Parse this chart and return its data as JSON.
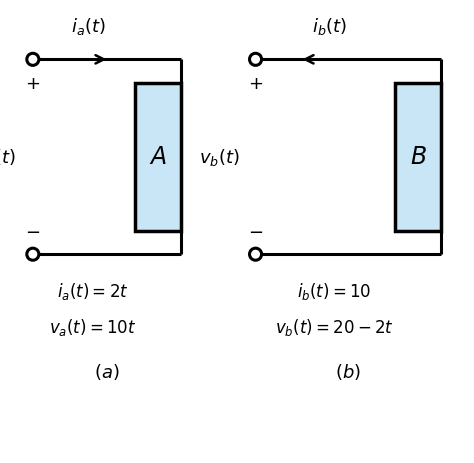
{
  "bg_color": "#ffffff",
  "box_fill": "#c8e6f5",
  "box_edge": "#000000",
  "line_color": "#000000",
  "fig_width": 4.74,
  "fig_height": 4.64,
  "circuit_a": {
    "label": "$A$",
    "current_label": "$i_a(t)$",
    "voltage_label": "$v_a(t)$",
    "arrow_dir": "right",
    "eq1": "$i_a(t) = 2t$",
    "eq2": "$v_a(t) = 10t$",
    "caption": "$(a)$"
  },
  "circuit_b": {
    "label": "$B$",
    "current_label": "$i_b(t)$",
    "voltage_label": "$v_b(t)$",
    "arrow_dir": "left",
    "eq1": "$i_b(t) = 10$",
    "eq2": "$v_b(t) = 20 - 2t$",
    "caption": "$(b)$"
  }
}
